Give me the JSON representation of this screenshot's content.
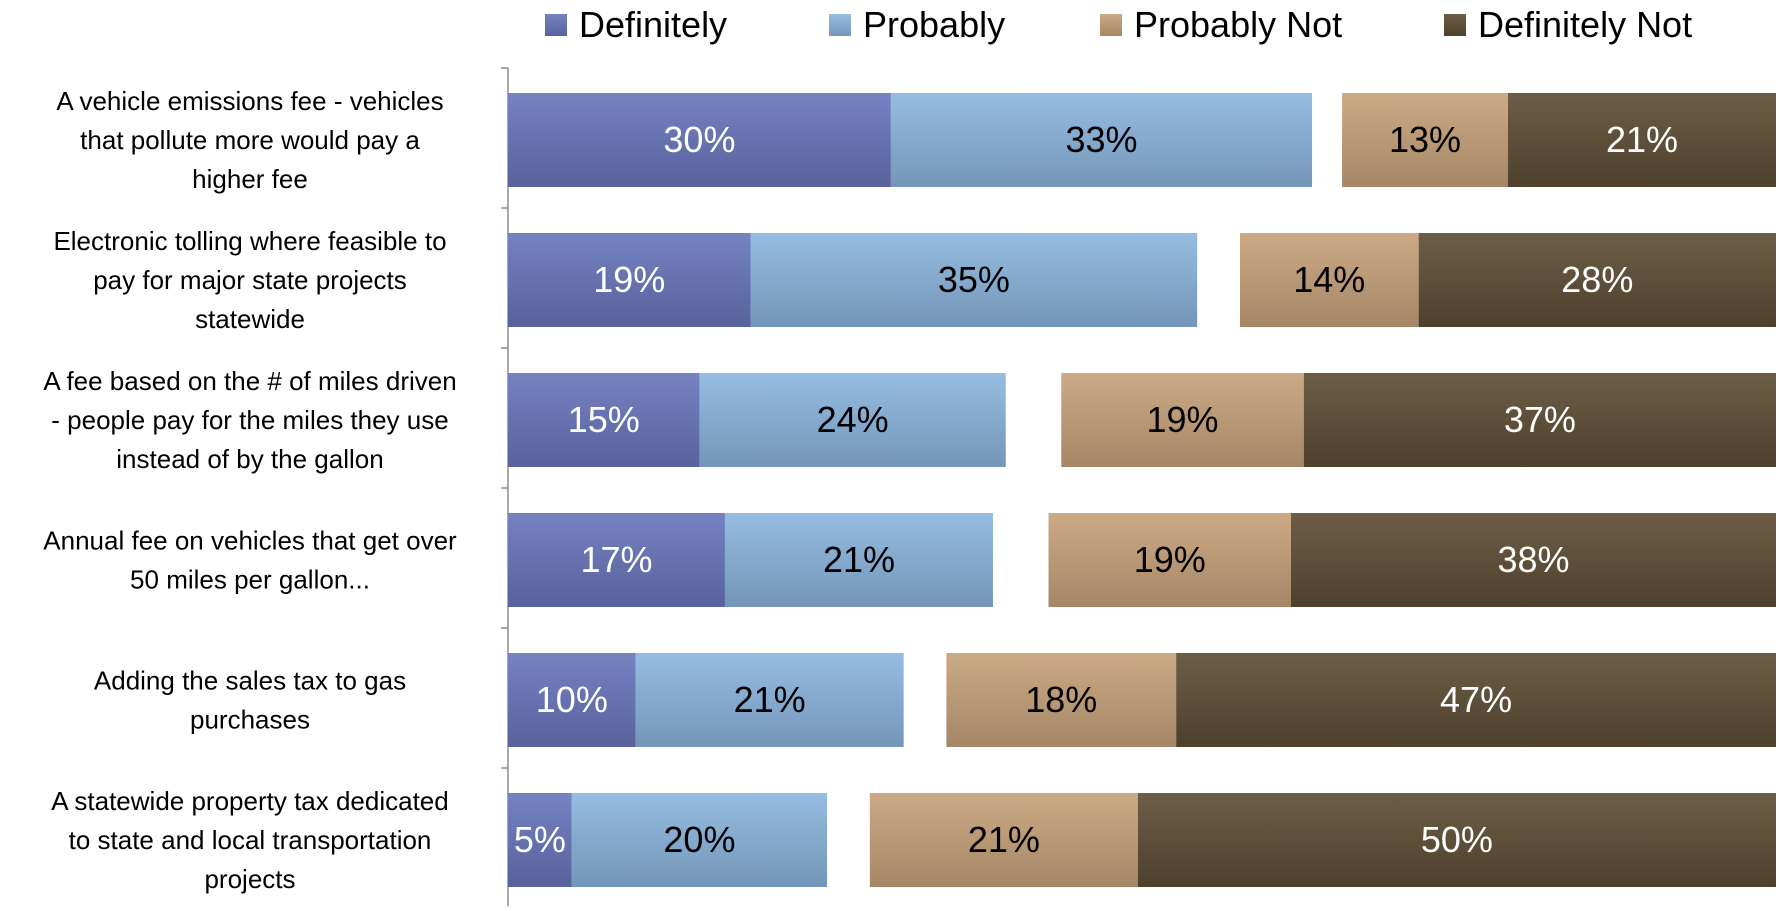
{
  "chart_data": {
    "type": "bar",
    "orientation": "horizontal",
    "stacked": true,
    "layout": "split",
    "title": "",
    "xlabel": "",
    "ylabel": "",
    "legend_position": "top",
    "grid": false,
    "categories": [
      "A vehicle emissions fee - vehicles that pollute more would pay a higher fee",
      "Electronic tolling where feasible to pay for major state projects statewide",
      "A fee based on the # of miles driven - people pay for the miles they use instead of by the gallon",
      "Annual fee on vehicles that get over 50 miles per gallon...",
      "Adding the sales tax to gas purchases",
      "A statewide property tax dedicated to state and local transportation projects"
    ],
    "category_lines": [
      [
        "A vehicle emissions fee - vehicles",
        "that pollute more would pay a",
        "higher fee"
      ],
      [
        "Electronic tolling where feasible to",
        "pay for major state projects",
        "statewide"
      ],
      [
        "A fee based on the # of miles driven",
        "- people pay for the miles they use",
        "instead of by the gallon"
      ],
      [
        "Annual fee on vehicles that get over",
        "50 miles per gallon..."
      ],
      [
        "Adding the sales tax to gas",
        "purchases"
      ],
      [
        "A statewide property tax dedicated",
        "to state and local transportation",
        "projects"
      ]
    ],
    "series": [
      {
        "name": "Definitely",
        "group": "left",
        "color": "#6a78bd",
        "label_color": "#ffffff",
        "values": [
          30,
          19,
          15,
          17,
          10,
          5
        ]
      },
      {
        "name": "Probably",
        "group": "left",
        "color": "#8db7e0",
        "label_color": "#000000",
        "values": [
          33,
          35,
          24,
          21,
          21,
          20
        ]
      },
      {
        "name": "Probably Not",
        "group": "right",
        "color": "#c9a37c",
        "label_color": "#000000",
        "values": [
          13,
          14,
          19,
          19,
          18,
          21
        ]
      },
      {
        "name": "Definitely Not",
        "group": "right",
        "color": "#5f4f36",
        "label_color": "#ffffff",
        "values": [
          21,
          28,
          37,
          38,
          47,
          50
        ]
      }
    ],
    "value_suffix": "%"
  }
}
